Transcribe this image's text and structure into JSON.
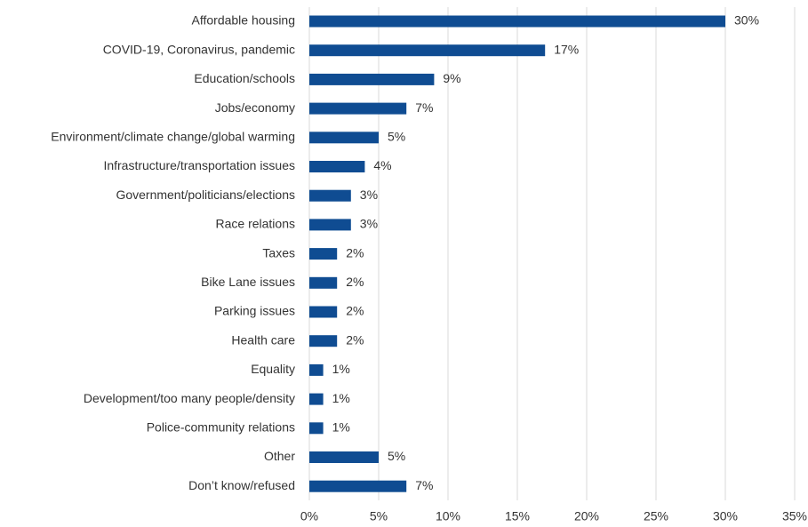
{
  "chart_data": {
    "type": "bar",
    "orientation": "horizontal",
    "categories": [
      "Affordable housing",
      "COVID-19, Coronavirus, pandemic",
      "Education/schools",
      "Jobs/economy",
      "Environment/climate change/global warming",
      "Infrastructure/transportation issues",
      "Government/politicians/elections",
      "Race relations",
      "Taxes",
      "Bike Lane issues",
      "Parking issues",
      "Health care",
      "Equality",
      "Development/too many people/density",
      "Police-community relations",
      "Other",
      "Don’t know/refused"
    ],
    "values": [
      30,
      17,
      9,
      7,
      5,
      4,
      3,
      3,
      2,
      2,
      2,
      2,
      1,
      1,
      1,
      5,
      7
    ],
    "value_labels": [
      "30%",
      "17%",
      "9%",
      "7%",
      "5%",
      "4%",
      "3%",
      "3%",
      "2%",
      "2%",
      "2%",
      "2%",
      "1%",
      "1%",
      "1%",
      "5%",
      "7%"
    ],
    "color": "#0f4c92",
    "xlim": [
      0,
      35
    ],
    "xticks": [
      {
        "value": 0,
        "label": "0%"
      },
      {
        "value": 5,
        "label": "5%"
      },
      {
        "value": 10,
        "label": "10%"
      },
      {
        "value": 15,
        "label": "15%"
      },
      {
        "value": 20,
        "label": "20%"
      },
      {
        "value": 25,
        "label": "25%"
      },
      {
        "value": 30,
        "label": "30%"
      },
      {
        "value": 35,
        "label": "35%"
      }
    ],
    "grid": true
  }
}
